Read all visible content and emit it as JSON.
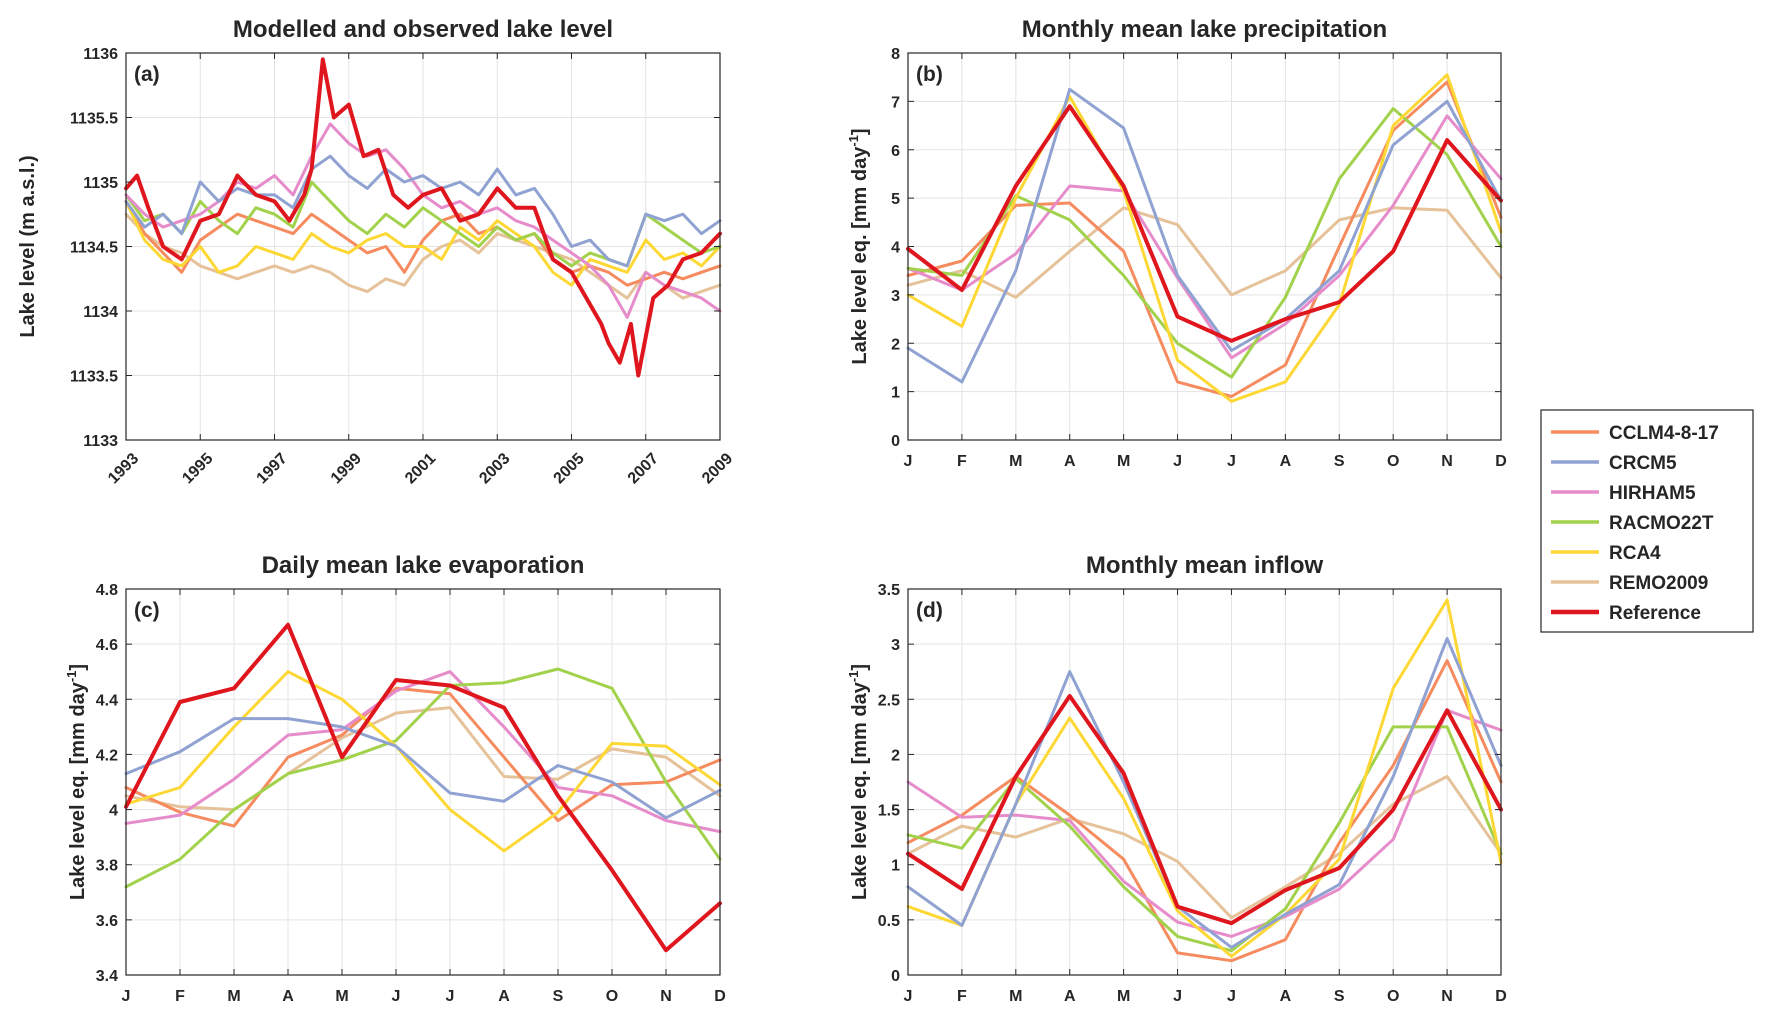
{
  "colors": {
    "CCLM4-8-17": "#f58b5e",
    "CRCM5": "#8fa2d2",
    "HIRHAM5": "#e68ccb",
    "RACMO22T": "#a2d24c",
    "RCA4": "#fdd835",
    "REMO2009": "#e5c29a",
    "Reference": "#e0161e"
  },
  "legend": {
    "entries": [
      "CCLM4-8-17",
      "CRCM5",
      "HIRHAM5",
      "RACMO22T",
      "RCA4",
      "REMO2009",
      "Reference"
    ],
    "placement": "right"
  },
  "chart_data": [
    {
      "type": "line",
      "panel_label": "(a)",
      "title": "Modelled and observed lake level",
      "ylabel": "Lake level (m a.s.l.)",
      "xlim": [
        1993,
        2009
      ],
      "ylim": [
        1133,
        1136
      ],
      "xticks": [
        1993,
        1995,
        1997,
        1999,
        2001,
        2003,
        2005,
        2007,
        2009
      ],
      "yticks": [
        1133,
        1133.5,
        1134,
        1134.5,
        1135,
        1135.5,
        1136
      ],
      "ytick_labels": [
        "1133",
        "1133.5",
        "1134",
        "1134.5",
        "1135",
        "1135.5",
        "1136"
      ],
      "grid": true,
      "series": [
        {
          "name": "REMO2009",
          "x": [
            1993.0,
            1993.5,
            1994.0,
            1994.5,
            1995.0,
            1995.5,
            1996.0,
            1996.5,
            1997.0,
            1997.5,
            1998.0,
            1998.5,
            1999.0,
            1999.5,
            2000.0,
            2000.5,
            2001.0,
            2001.5,
            2002.0,
            2002.5,
            2003.0,
            2003.5,
            2004.0,
            2004.5,
            2005.0,
            2005.5,
            2006.0,
            2006.5,
            2007.0,
            2007.5,
            2008.0,
            2008.5,
            2009.0
          ],
          "y": [
            1134.75,
            1134.6,
            1134.5,
            1134.45,
            1134.35,
            1134.3,
            1134.25,
            1134.3,
            1134.35,
            1134.3,
            1134.35,
            1134.3,
            1134.2,
            1134.15,
            1134.25,
            1134.2,
            1134.4,
            1134.5,
            1134.55,
            1134.45,
            1134.6,
            1134.55,
            1134.5,
            1134.45,
            1134.4,
            1134.3,
            1134.2,
            1134.1,
            1134.3,
            1134.2,
            1134.1,
            1134.15,
            1134.2
          ]
        },
        {
          "name": "CCLM4-8-17",
          "x": [
            1993.0,
            1993.5,
            1994.0,
            1994.5,
            1995.0,
            1995.5,
            1996.0,
            1996.5,
            1997.0,
            1997.5,
            1998.0,
            1998.5,
            1999.0,
            1999.5,
            2000.0,
            2000.5,
            2001.0,
            2001.5,
            2002.0,
            2002.5,
            2003.0,
            2003.5,
            2004.0,
            2004.5,
            2005.0,
            2005.5,
            2006.0,
            2006.5,
            2007.0,
            2007.5,
            2008.0,
            2008.5,
            2009.0
          ],
          "y": [
            1134.85,
            1134.6,
            1134.45,
            1134.3,
            1134.55,
            1134.65,
            1134.75,
            1134.7,
            1134.65,
            1134.6,
            1134.75,
            1134.65,
            1134.55,
            1134.45,
            1134.5,
            1134.3,
            1134.55,
            1134.7,
            1134.75,
            1134.6,
            1134.65,
            1134.55,
            1134.6,
            1134.4,
            1134.3,
            1134.35,
            1134.3,
            1134.2,
            1134.25,
            1134.3,
            1134.25,
            1134.3,
            1134.35
          ]
        },
        {
          "name": "RCA4",
          "x": [
            1993.0,
            1993.5,
            1994.0,
            1994.5,
            1995.0,
            1995.5,
            1996.0,
            1996.5,
            1997.0,
            1997.5,
            1998.0,
            1998.5,
            1999.0,
            1999.5,
            2000.0,
            2000.5,
            2001.0,
            2001.5,
            2002.0,
            2002.5,
            2003.0,
            2003.5,
            2004.0,
            2004.5,
            2005.0,
            2005.5,
            2006.0,
            2006.5,
            2007.0,
            2007.5,
            2008.0,
            2008.5,
            2009.0
          ],
          "y": [
            1134.85,
            1134.55,
            1134.4,
            1134.35,
            1134.5,
            1134.3,
            1134.35,
            1134.5,
            1134.45,
            1134.4,
            1134.6,
            1134.5,
            1134.45,
            1134.55,
            1134.6,
            1134.5,
            1134.5,
            1134.4,
            1134.65,
            1134.55,
            1134.7,
            1134.6,
            1134.5,
            1134.3,
            1134.2,
            1134.4,
            1134.35,
            1134.3,
            1134.55,
            1134.4,
            1134.45,
            1134.35,
            1134.5
          ]
        },
        {
          "name": "RACMO22T",
          "x": [
            1993.0,
            1993.5,
            1994.0,
            1994.5,
            1995.0,
            1995.5,
            1996.0,
            1996.5,
            1997.0,
            1997.5,
            1998.0,
            1998.5,
            1999.0,
            1999.5,
            2000.0,
            2000.5,
            2001.0,
            2001.5,
            2002.0,
            2002.5,
            2003.0,
            2003.5,
            2004.0,
            2004.5,
            2005.0,
            2005.5,
            2006.0,
            2006.5,
            2007.0,
            2007.5,
            2008.0,
            2008.5,
            2009.0
          ],
          "y": [
            1134.9,
            1134.7,
            1134.75,
            1134.6,
            1134.85,
            1134.7,
            1134.6,
            1134.8,
            1134.75,
            1134.65,
            1135.0,
            1134.85,
            1134.7,
            1134.6,
            1134.75,
            1134.65,
            1134.8,
            1134.7,
            1134.6,
            1134.5,
            1134.65,
            1134.55,
            1134.6,
            1134.45,
            1134.35,
            1134.45,
            1134.4,
            1134.35,
            1134.75,
            1134.65,
            1134.55,
            1134.45,
            1134.5
          ]
        },
        {
          "name": "HIRHAM5",
          "x": [
            1993.0,
            1993.5,
            1994.0,
            1994.5,
            1995.0,
            1995.5,
            1996.0,
            1996.5,
            1997.0,
            1997.5,
            1998.0,
            1998.5,
            1999.0,
            1999.5,
            2000.0,
            2000.5,
            2001.0,
            2001.5,
            2002.0,
            2002.5,
            2003.0,
            2003.5,
            2004.0,
            2004.5,
            2005.0,
            2005.5,
            2006.0,
            2006.5,
            2007.0,
            2007.5,
            2008.0,
            2008.5,
            2009.0
          ],
          "y": [
            1134.9,
            1134.75,
            1134.65,
            1134.7,
            1134.75,
            1134.85,
            1135.0,
            1134.95,
            1135.05,
            1134.9,
            1135.2,
            1135.45,
            1135.3,
            1135.2,
            1135.25,
            1135.1,
            1134.9,
            1134.8,
            1134.85,
            1134.75,
            1134.8,
            1134.7,
            1134.65,
            1134.55,
            1134.45,
            1134.35,
            1134.2,
            1133.95,
            1134.3,
            1134.2,
            1134.15,
            1134.1,
            1134.0
          ]
        },
        {
          "name": "CRCM5",
          "x": [
            1993.0,
            1993.5,
            1994.0,
            1994.5,
            1995.0,
            1995.5,
            1996.0,
            1996.5,
            1997.0,
            1997.5,
            1998.0,
            1998.5,
            1999.0,
            1999.5,
            2000.0,
            2000.5,
            2001.0,
            2001.5,
            2002.0,
            2002.5,
            2003.0,
            2003.5,
            2004.0,
            2004.5,
            2005.0,
            2005.5,
            2006.0,
            2006.5,
            2007.0,
            2007.5,
            2008.0,
            2008.5,
            2009.0
          ],
          "y": [
            1134.85,
            1134.65,
            1134.75,
            1134.6,
            1135.0,
            1134.85,
            1134.95,
            1134.9,
            1134.9,
            1134.8,
            1135.1,
            1135.2,
            1135.05,
            1134.95,
            1135.1,
            1135.0,
            1135.05,
            1134.95,
            1135.0,
            1134.9,
            1135.1,
            1134.9,
            1134.95,
            1134.75,
            1134.5,
            1134.55,
            1134.4,
            1134.35,
            1134.75,
            1134.7,
            1134.75,
            1134.6,
            1134.7
          ]
        },
        {
          "name": "Reference",
          "x": [
            1993.0,
            1993.3,
            1993.6,
            1994.0,
            1994.5,
            1995.0,
            1995.5,
            1996.0,
            1996.5,
            1997.0,
            1997.4,
            1997.8,
            1998.0,
            1998.3,
            1998.6,
            1999.0,
            1999.4,
            1999.8,
            2000.2,
            2000.6,
            2001.0,
            2001.5,
            2002.0,
            2002.5,
            2003.0,
            2003.5,
            2004.0,
            2004.5,
            2005.0,
            2005.4,
            2005.8,
            2006.0,
            2006.3,
            2006.6,
            2006.8,
            2007.2,
            2007.6,
            2008.0,
            2008.5,
            2009.0
          ],
          "y": [
            1134.95,
            1135.05,
            1134.8,
            1134.5,
            1134.4,
            1134.7,
            1134.75,
            1135.05,
            1134.9,
            1134.85,
            1134.7,
            1134.9,
            1135.1,
            1135.95,
            1135.5,
            1135.6,
            1135.2,
            1135.25,
            1134.9,
            1134.8,
            1134.9,
            1134.95,
            1134.7,
            1134.75,
            1134.95,
            1134.8,
            1134.8,
            1134.4,
            1134.3,
            1134.1,
            1133.9,
            1133.75,
            1133.6,
            1133.9,
            1133.5,
            1134.1,
            1134.2,
            1134.4,
            1134.45,
            1134.6
          ]
        }
      ]
    },
    {
      "type": "line",
      "panel_label": "(b)",
      "title": "Monthly mean lake precipitation",
      "ylabel": "Lake level eq. [mm day",
      "ylabel_sup": "-1",
      "ylabel_end": "]",
      "categories": [
        "J",
        "F",
        "M",
        "A",
        "M",
        "J",
        "J",
        "A",
        "S",
        "O",
        "N",
        "D"
      ],
      "ylim": [
        0,
        8
      ],
      "yticks": [
        0,
        1,
        2,
        3,
        4,
        5,
        6,
        7,
        8
      ],
      "ytick_labels": [
        "0",
        "1",
        "2",
        "3",
        "4",
        "5",
        "6",
        "7",
        "8"
      ],
      "grid": true,
      "series": [
        {
          "name": "REMO2009",
          "values": [
            3.2,
            3.5,
            2.95,
            3.9,
            4.8,
            4.45,
            3.0,
            3.5,
            4.55,
            4.8,
            4.75,
            3.35
          ]
        },
        {
          "name": "CCLM4-8-17",
          "values": [
            3.4,
            3.7,
            4.85,
            4.9,
            3.9,
            1.2,
            0.9,
            1.55,
            4.0,
            6.4,
            7.4,
            4.6
          ]
        },
        {
          "name": "HIRHAM5",
          "values": [
            3.55,
            3.1,
            3.85,
            5.25,
            5.15,
            3.35,
            1.7,
            2.4,
            3.4,
            4.85,
            6.7,
            5.4
          ]
        },
        {
          "name": "RACMO22T",
          "values": [
            3.55,
            3.4,
            5.05,
            4.55,
            3.4,
            2.0,
            1.3,
            2.95,
            5.4,
            6.85,
            5.9,
            4.0
          ]
        },
        {
          "name": "RCA4",
          "values": [
            3.0,
            2.35,
            5.0,
            7.1,
            5.15,
            1.65,
            0.8,
            1.2,
            2.8,
            6.5,
            7.55,
            4.3
          ]
        },
        {
          "name": "CRCM5",
          "values": [
            1.9,
            1.2,
            3.5,
            7.25,
            6.45,
            3.4,
            1.85,
            2.5,
            3.5,
            6.1,
            7.0,
            4.95
          ]
        },
        {
          "name": "Reference",
          "values": [
            3.95,
            3.1,
            5.25,
            6.9,
            5.25,
            2.55,
            2.05,
            2.5,
            2.85,
            3.9,
            6.2,
            4.95
          ]
        }
      ]
    },
    {
      "type": "line",
      "panel_label": "(c)",
      "title": "Daily mean lake evaporation",
      "ylabel": "Lake level eq. [mm day",
      "ylabel_sup": "-1",
      "ylabel_end": "]",
      "categories": [
        "J",
        "F",
        "M",
        "A",
        "M",
        "J",
        "J",
        "A",
        "S",
        "O",
        "N",
        "D"
      ],
      "ylim": [
        3.4,
        4.8
      ],
      "yticks": [
        3.4,
        3.6,
        3.8,
        4.0,
        4.2,
        4.4,
        4.6,
        4.8
      ],
      "ytick_labels": [
        "3.4",
        "3.6",
        "3.8",
        "4",
        "4.2",
        "4.4",
        "4.6",
        "4.8"
      ],
      "grid": true,
      "series": [
        {
          "name": "REMO2009",
          "values": [
            4.05,
            4.01,
            4.0,
            4.13,
            4.26,
            4.35,
            4.37,
            4.12,
            4.11,
            4.22,
            4.19,
            4.05
          ]
        },
        {
          "name": "CCLM4-8-17",
          "values": [
            4.08,
            3.99,
            3.94,
            4.19,
            4.27,
            4.44,
            4.42,
            4.19,
            3.96,
            4.09,
            4.1,
            4.18
          ]
        },
        {
          "name": "HIRHAM5",
          "values": [
            3.95,
            3.98,
            4.11,
            4.27,
            4.29,
            4.43,
            4.5,
            4.3,
            4.08,
            4.05,
            3.96,
            3.92
          ]
        },
        {
          "name": "RACMO22T",
          "values": [
            3.72,
            3.82,
            4.0,
            4.13,
            4.18,
            4.25,
            4.45,
            4.46,
            4.51,
            4.44,
            4.1,
            3.82
          ]
        },
        {
          "name": "RCA4",
          "values": [
            4.02,
            4.08,
            4.3,
            4.5,
            4.4,
            4.23,
            4.0,
            3.85,
            3.99,
            4.24,
            4.23,
            4.09
          ]
        },
        {
          "name": "CRCM5",
          "values": [
            4.13,
            4.21,
            4.33,
            4.33,
            4.3,
            4.23,
            4.06,
            4.03,
            4.16,
            4.1,
            3.97,
            4.07
          ]
        },
        {
          "name": "Reference",
          "values": [
            4.01,
            4.39,
            4.44,
            4.67,
            4.19,
            4.47,
            4.45,
            4.37,
            4.05,
            3.78,
            3.49,
            3.66
          ]
        }
      ]
    },
    {
      "type": "line",
      "panel_label": "(d)",
      "title": "Monthly mean inflow",
      "ylabel": "Lake level eq. [mm day",
      "ylabel_sup": "-1",
      "ylabel_end": "]",
      "categories": [
        "J",
        "F",
        "M",
        "A",
        "M",
        "J",
        "J",
        "A",
        "S",
        "O",
        "N",
        "D"
      ],
      "ylim": [
        0,
        3.5
      ],
      "yticks": [
        0,
        0.5,
        1,
        1.5,
        2,
        2.5,
        3,
        3.5
      ],
      "ytick_labels": [
        "0",
        "0.5",
        "1",
        "1.5",
        "2",
        "2.5",
        "3",
        "3.5"
      ],
      "grid": true,
      "series": [
        {
          "name": "REMO2009",
          "values": [
            1.1,
            1.35,
            1.25,
            1.42,
            1.28,
            1.03,
            0.52,
            0.8,
            1.1,
            1.55,
            1.8,
            1.1
          ]
        },
        {
          "name": "CCLM4-8-17",
          "values": [
            1.2,
            1.45,
            1.8,
            1.45,
            1.05,
            0.2,
            0.13,
            0.32,
            1.2,
            1.9,
            2.85,
            1.75
          ]
        },
        {
          "name": "HIRHAM5",
          "values": [
            1.75,
            1.43,
            1.45,
            1.4,
            0.85,
            0.48,
            0.35,
            0.53,
            0.78,
            1.23,
            2.4,
            2.22
          ]
        },
        {
          "name": "RACMO22T",
          "values": [
            1.27,
            1.15,
            1.78,
            1.35,
            0.8,
            0.35,
            0.22,
            0.6,
            1.38,
            2.25,
            2.25,
            1.1
          ]
        },
        {
          "name": "RCA4",
          "values": [
            0.62,
            0.45,
            1.55,
            2.33,
            1.6,
            0.58,
            0.17,
            0.55,
            1.05,
            2.6,
            3.4,
            1.02
          ]
        },
        {
          "name": "CRCM5",
          "values": [
            0.8,
            0.45,
            1.55,
            2.75,
            1.75,
            0.62,
            0.25,
            0.55,
            0.82,
            1.8,
            3.05,
            1.9
          ]
        },
        {
          "name": "Reference",
          "values": [
            1.1,
            0.78,
            1.8,
            2.53,
            1.83,
            0.62,
            0.47,
            0.77,
            0.97,
            1.5,
            2.4,
            1.5
          ]
        }
      ]
    }
  ]
}
